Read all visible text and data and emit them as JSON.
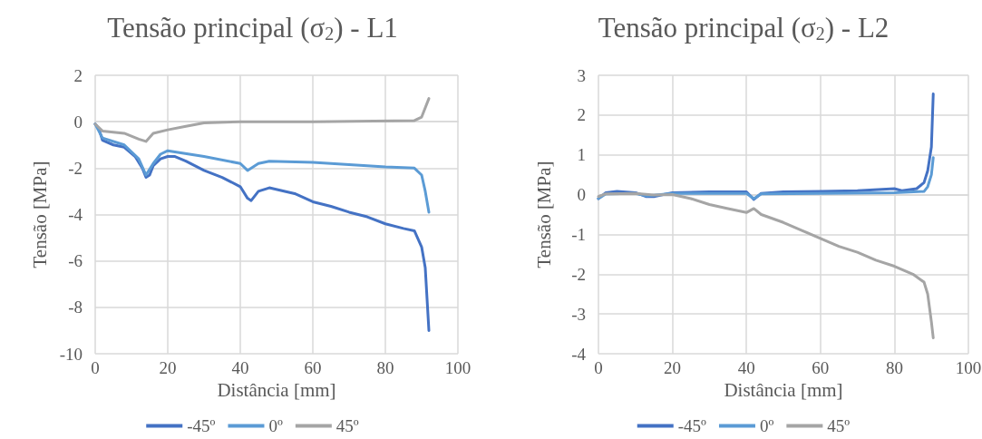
{
  "chart_data": [
    {
      "type": "line",
      "title": "Tensão principal (σ$_{2}$) - L1",
      "xlabel": "Distância [mm]",
      "ylabel": "Tensão [MPa]",
      "xlim": [
        0,
        100
      ],
      "xticks": [
        0,
        20,
        40,
        60,
        80,
        100
      ],
      "ylim": [
        -10,
        2
      ],
      "yticks": [
        -10,
        -8,
        -6,
        -4,
        -2,
        0,
        2
      ],
      "grid": true,
      "legend": "bottom",
      "marker": "none",
      "series": [
        {
          "name": "-45º",
          "color": "#4472c4",
          "x": [
            0,
            1,
            2,
            5,
            8,
            11,
            13,
            14,
            15,
            16,
            18,
            20,
            22,
            25,
            30,
            35,
            40,
            42,
            43,
            45,
            48,
            55,
            60,
            65,
            70,
            75,
            80,
            85,
            88,
            90,
            91,
            92
          ],
          "values": [
            -0.1,
            -0.3,
            -0.8,
            -1.0,
            -1.1,
            -1.5,
            -2.0,
            -2.4,
            -2.3,
            -1.9,
            -1.6,
            -1.5,
            -1.5,
            -1.7,
            -2.1,
            -2.4,
            -2.8,
            -3.3,
            -3.4,
            -3.0,
            -2.85,
            -3.1,
            -3.45,
            -3.65,
            -3.9,
            -4.1,
            -4.4,
            -4.6,
            -4.7,
            -5.4,
            -6.3,
            -9.0
          ]
        },
        {
          "name": "0º",
          "color": "#5b9bd5",
          "x": [
            0,
            2,
            8,
            12,
            14,
            16,
            18,
            20,
            30,
            40,
            42,
            45,
            48,
            60,
            80,
            88,
            90,
            91,
            92
          ],
          "values": [
            -0.1,
            -0.7,
            -1.0,
            -1.6,
            -2.3,
            -1.8,
            -1.4,
            -1.25,
            -1.5,
            -1.8,
            -2.1,
            -1.8,
            -1.7,
            -1.75,
            -1.95,
            -2.0,
            -2.3,
            -3.0,
            -3.9
          ]
        },
        {
          "name": "45º",
          "color": "#a5a5a5",
          "x": [
            0,
            2,
            8,
            12,
            14,
            16,
            20,
            25,
            30,
            40,
            60,
            88,
            90,
            92
          ],
          "values": [
            -0.1,
            -0.4,
            -0.5,
            -0.75,
            -0.85,
            -0.5,
            -0.35,
            -0.2,
            -0.05,
            0,
            0,
            0.05,
            0.2,
            1.0
          ]
        }
      ]
    },
    {
      "type": "line",
      "title": "Tensão principal (σ$_{2}$) - L2",
      "xlabel": "Distância [mm]",
      "ylabel": "Tensão [MPa]",
      "xlim": [
        0,
        100
      ],
      "xticks": [
        0,
        20,
        40,
        60,
        80,
        100
      ],
      "ylim": [
        -4,
        3
      ],
      "yticks": [
        -4,
        -3,
        -2,
        -1,
        0,
        1,
        2,
        3
      ],
      "grid": true,
      "legend": "bottom",
      "marker": "none",
      "series": [
        {
          "name": "-45º",
          "color": "#4472c4",
          "x": [
            0,
            2,
            5,
            10,
            13,
            15,
            20,
            30,
            40,
            42,
            44,
            50,
            60,
            70,
            80,
            82,
            86,
            88,
            89,
            90,
            90.5
          ],
          "values": [
            -0.1,
            0.05,
            0.08,
            0.05,
            -0.05,
            -0.05,
            0.05,
            0.07,
            0.07,
            -0.12,
            0.03,
            0.07,
            0.08,
            0.1,
            0.15,
            0.1,
            0.15,
            0.3,
            0.6,
            1.2,
            2.53
          ]
        },
        {
          "name": "0º",
          "color": "#5b9bd5",
          "x": [
            0,
            2,
            10,
            13,
            20,
            40,
            42,
            44,
            60,
            80,
            88,
            89,
            90,
            90.5
          ],
          "values": [
            -0.1,
            0.02,
            0.03,
            -0.03,
            0.03,
            0.03,
            -0.1,
            0.02,
            0.03,
            0.05,
            0.08,
            0.2,
            0.5,
            0.93
          ]
        },
        {
          "name": "45º",
          "color": "#a5a5a5",
          "x": [
            0,
            2,
            10,
            15,
            20,
            25,
            30,
            35,
            40,
            42,
            44,
            50,
            55,
            60,
            65,
            70,
            75,
            80,
            85,
            88,
            89,
            90,
            90.5
          ],
          "values": [
            -0.05,
            0.02,
            0.03,
            -0.01,
            0,
            -0.1,
            -0.25,
            -0.35,
            -0.45,
            -0.35,
            -0.5,
            -0.7,
            -0.9,
            -1.1,
            -1.3,
            -1.45,
            -1.65,
            -1.8,
            -2.0,
            -2.2,
            -2.5,
            -3.2,
            -3.6
          ]
        }
      ]
    }
  ]
}
